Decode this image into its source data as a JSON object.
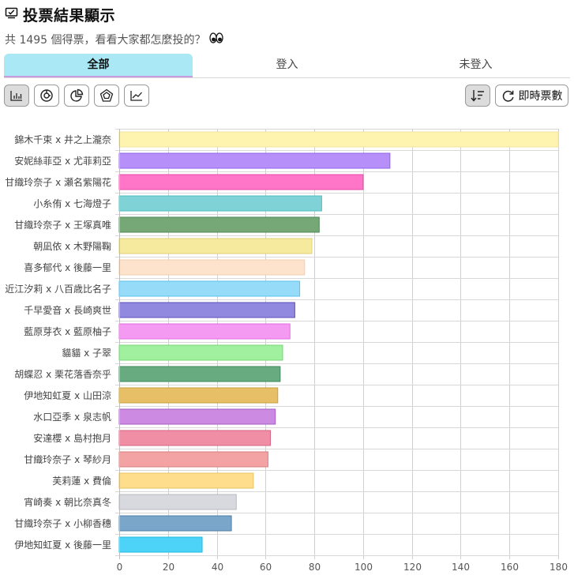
{
  "header": {
    "title": "投票結果顯示",
    "subtitle": "共 1495 個得票，看看大家都怎麼投的？",
    "title_icon": "vote-icon",
    "subtitle_emoji": "eyes-emoji"
  },
  "tabs": [
    {
      "label": "全部",
      "active": true
    },
    {
      "label": "登入",
      "active": false
    },
    {
      "label": "未登入",
      "active": false
    }
  ],
  "toolbar": {
    "chart_buttons": [
      "bar-chart-icon",
      "donut-chart-icon",
      "pie-chart-icon",
      "radar-chart-icon",
      "line-chart-icon"
    ],
    "active_chart": "bar-chart-icon",
    "sort_icon": "sort-icon",
    "realtime_label": "即時票數",
    "realtime_icon": "refresh-icon"
  },
  "chart_data": {
    "type": "bar",
    "orientation": "horizontal",
    "categories": [
      "錦木千束 x 井之上瀧奈",
      "安妮絲菲亞 x 尤菲莉亞",
      "甘織玲奈子 x 瀬名紫陽花",
      "小糸侑 x 七海燈子",
      "甘織玲奈子 x 王塚真唯",
      "朝凪依 x 木野陽鞠",
      "喜多郁代 x 後藤一里",
      "近江汐莉 x 八百歳比名子",
      "千早愛音 x 長崎爽世",
      "藍原芽衣 x 藍原柚子",
      "貓貓 x 子翠",
      "胡蝶忍 x 栗花落香奈乎",
      "伊地知虹夏 x 山田涼",
      "水口亞季 x 泉志帆",
      "安達櫻 x 島村抱月",
      "甘織玲奈子 x 琴紗月",
      "芙莉蓮 x 費倫",
      "宵崎奏 x 朝比奈真冬",
      "甘織玲奈子 x 小柳香穗",
      "伊地知虹夏 x 後藤一里"
    ],
    "values": [
      180,
      111,
      100,
      83,
      82,
      79,
      76,
      74,
      72,
      70,
      67,
      66,
      65,
      64,
      62,
      61,
      55,
      48,
      46,
      34
    ],
    "colors": [
      "#fff3b0",
      "#b690f8",
      "#ff75c8",
      "#7fd3d6",
      "#76a877",
      "#f5ea9e",
      "#fde3cb",
      "#96dcf9",
      "#9188e0",
      "#f59af2",
      "#a0f0a0",
      "#69ab81",
      "#e6bf66",
      "#cc8ae2",
      "#ef8ea5",
      "#f3a3a3",
      "#fedd8c",
      "#d8d9de",
      "#79a6c9",
      "#4ed3f8"
    ],
    "borders": [
      "#f2e6a0",
      "#8f63ea",
      "#e64aa8",
      "#4fbcbf",
      "#4d8750",
      "#e0d27a",
      "#f2cfae",
      "#59c2ee",
      "#5c51bd",
      "#e06fdd",
      "#74d874",
      "#3f8a5d",
      "#c9a03f",
      "#a35ec4",
      "#d66683",
      "#d97f7f",
      "#e8c363",
      "#b9bac0",
      "#4f7fa6",
      "#1fb8e3"
    ],
    "xticks": [
      0,
      20,
      40,
      60,
      80,
      100,
      120,
      140,
      160,
      180
    ],
    "xlim": [
      0,
      180
    ],
    "grid": true,
    "legend": "none"
  }
}
